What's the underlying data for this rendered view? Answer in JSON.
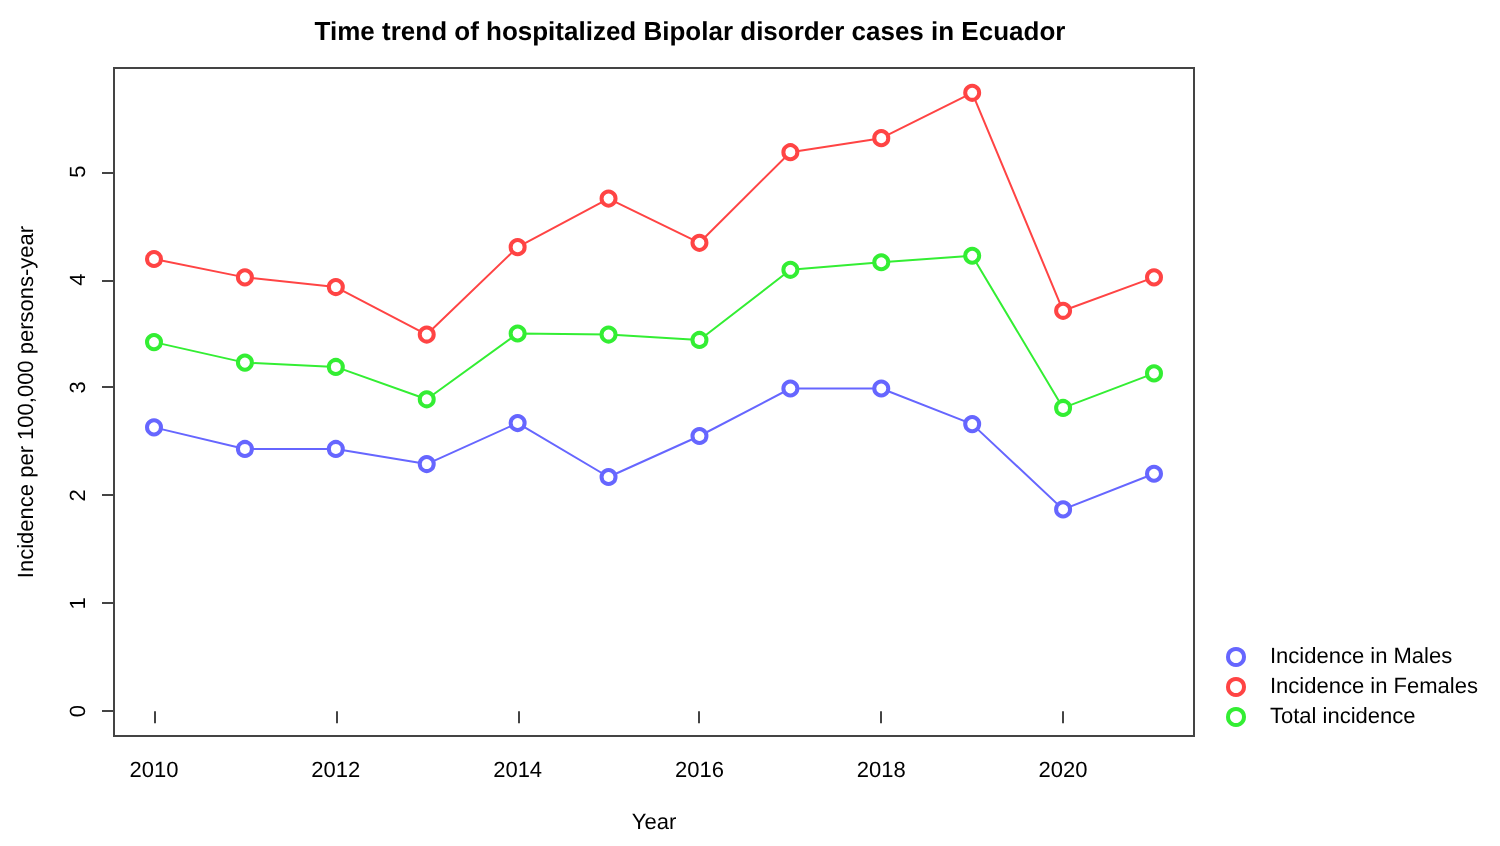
{
  "chart_data": {
    "type": "line",
    "title": "Time trend of hospitalized Bipolar disorder cases in Ecuador",
    "xlabel": "Year",
    "ylabel": "Incidence per 100,000 persons-year",
    "x": [
      2010,
      2011,
      2012,
      2013,
      2014,
      2015,
      2016,
      2017,
      2018,
      2019,
      2020,
      2021
    ],
    "series": [
      {
        "name": "Incidence in Males",
        "color": "#6666ff",
        "values": [
          2.63,
          2.43,
          2.43,
          2.29,
          2.67,
          2.17,
          2.55,
          2.99,
          2.99,
          2.66,
          1.87,
          2.2
        ]
      },
      {
        "name": "Incidence in Females",
        "color": "#ff4444",
        "values": [
          4.19,
          4.02,
          3.93,
          3.49,
          4.3,
          4.75,
          4.34,
          5.18,
          5.31,
          5.73,
          3.71,
          4.02
        ]
      },
      {
        "name": "Total incidence",
        "color": "#33ee33",
        "values": [
          3.42,
          3.23,
          3.19,
          2.89,
          3.5,
          3.49,
          3.44,
          4.09,
          4.16,
          4.22,
          2.81,
          3.13
        ]
      }
    ],
    "xlim": [
      2009.56,
      2021.44
    ],
    "xticks": [
      2010,
      2012,
      2014,
      2016,
      2018,
      2020
    ],
    "ylim": [
      -0.23,
      5.96
    ],
    "yticks": [
      0,
      1,
      2,
      3,
      4,
      5
    ],
    "grid": false,
    "legend": "bottom right",
    "marker": "circle",
    "line_style": "solid"
  }
}
